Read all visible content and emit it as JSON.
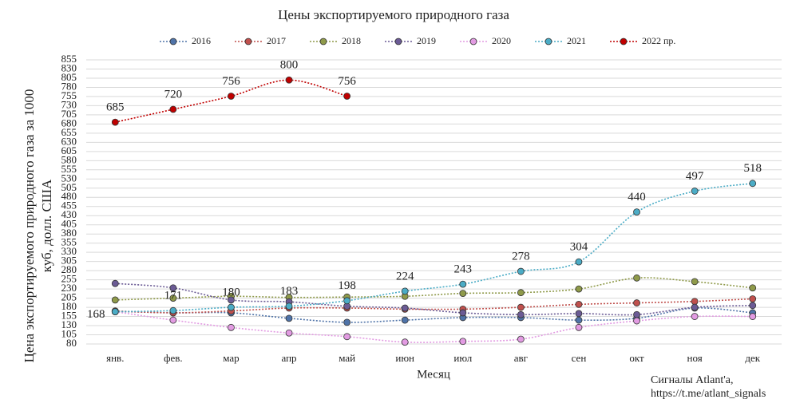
{
  "chart_data": {
    "type": "line",
    "title": "Цены экспортируемого природного газа",
    "ylabel": [
      "Цена экспортируемого природного газа за 1000",
      "куб,  долл. США"
    ],
    "xlabel": "Месяц",
    "annotations": [
      "Сигналы Atlant'a,",
      "https://t.me/atlant_signals"
    ],
    "categories": [
      "янв.",
      "фев.",
      "мар",
      "апр",
      "май",
      "июн",
      "июл",
      "авг",
      "сен",
      "окт",
      "ноя",
      "дек"
    ],
    "ylim": [
      80,
      855
    ],
    "yticks": [
      80,
      105,
      130,
      155,
      180,
      205,
      230,
      255,
      280,
      305,
      330,
      355,
      380,
      405,
      430,
      455,
      480,
      505,
      530,
      555,
      580,
      605,
      630,
      655,
      680,
      705,
      730,
      755,
      780,
      805,
      830,
      855
    ],
    "grid": true,
    "legend": "top",
    "series": [
      {
        "name": "2016",
        "color": "#4f73a8",
        "values": [
          169,
          165,
          165,
          150,
          139,
          145,
          152,
          152,
          145,
          150,
          178,
          165
        ]
      },
      {
        "name": "2017",
        "color": "#c0504d",
        "values": [
          170,
          165,
          170,
          178,
          178,
          175,
          175,
          180,
          188,
          192,
          196,
          203
        ]
      },
      {
        "name": "2018",
        "color": "#8f9a4a",
        "values": [
          200,
          205,
          210,
          207,
          208,
          210,
          218,
          220,
          230,
          260,
          250,
          233
        ]
      },
      {
        "name": "2019",
        "color": "#6b5b95",
        "values": [
          245,
          233,
          200,
          195,
          183,
          178,
          165,
          160,
          163,
          160,
          180,
          185
        ]
      },
      {
        "name": "2020",
        "color": "#e29be2",
        "values": [
          168,
          145,
          125,
          110,
          100,
          85,
          87,
          93,
          125,
          143,
          155,
          155
        ]
      },
      {
        "name": "2021",
        "color": "#4bacc6",
        "labeled": true,
        "values": [
          168,
          171,
          180,
          183,
          198,
          224,
          243,
          278,
          304,
          440,
          497,
          518
        ]
      },
      {
        "name": "2022 пр.",
        "color": "#c00000",
        "labeled": true,
        "values": [
          685,
          720,
          756,
          800,
          756,
          null,
          null,
          null,
          null,
          null,
          null,
          null
        ]
      }
    ]
  }
}
